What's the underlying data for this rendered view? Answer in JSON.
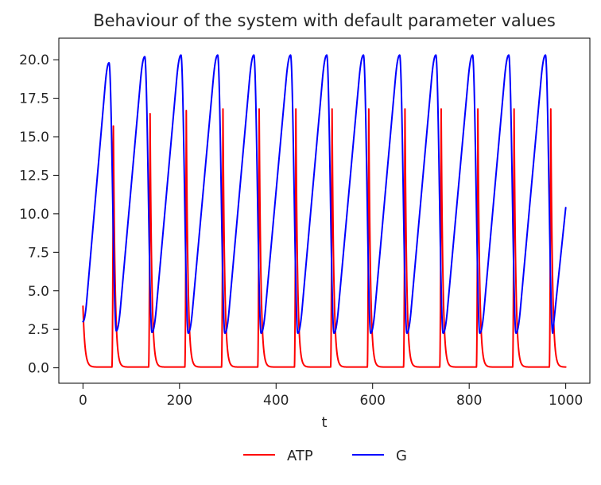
{
  "chart_data": {
    "type": "line",
    "title": "Behaviour of the system with default parameter values",
    "xlabel": "t",
    "ylabel": "",
    "xlim": [
      -50,
      1050
    ],
    "ylim": [
      -1.0,
      21.4
    ],
    "xticks": [
      0,
      200,
      400,
      600,
      800,
      1000
    ],
    "yticks": [
      0.0,
      2.5,
      5.0,
      7.5,
      10.0,
      12.5,
      15.0,
      17.5,
      20.0
    ],
    "xtick_labels": [
      "0",
      "200",
      "400",
      "600",
      "800",
      "1000"
    ],
    "ytick_labels": [
      "0.0",
      "2.5",
      "5.0",
      "7.5",
      "10.0",
      "12.5",
      "15.0",
      "17.5",
      "20.0"
    ],
    "grid": false,
    "legend_position": "bottom-center",
    "series": [
      {
        "name": "ATP",
        "color": "#ff0000",
        "oscillation": {
          "t_start": 0,
          "t_end": 1000,
          "initial_value": 4.0,
          "baseline": 0.05,
          "spike_times": [
            63,
            139,
            214,
            290,
            365,
            441,
            516,
            592,
            667,
            742,
            818,
            893,
            969
          ],
          "spike_peaks": [
            15.7,
            16.5,
            16.7,
            16.8,
            16.8,
            16.8,
            16.8,
            16.8,
            16.8,
            16.8,
            16.8,
            16.8,
            16.8
          ]
        }
      },
      {
        "name": "G",
        "color": "#0000ff",
        "oscillation": {
          "t_start": 0,
          "t_end": 1000,
          "initial_value": 3.0,
          "final_value": 10.4,
          "peak_times": [
            54,
            128,
            203,
            279,
            354,
            430,
            505,
            581,
            656,
            731,
            807,
            882,
            958
          ],
          "peak_values": [
            19.8,
            20.2,
            20.3,
            20.3,
            20.3,
            20.3,
            20.3,
            20.3,
            20.3,
            20.3,
            20.3,
            20.3,
            20.3
          ],
          "trough_times": [
            69,
            143,
            218,
            294,
            369,
            445,
            520,
            596,
            671,
            746,
            822,
            897,
            973
          ],
          "trough_values": [
            2.4,
            2.3,
            2.25,
            2.25,
            2.25,
            2.25,
            2.25,
            2.25,
            2.25,
            2.25,
            2.25,
            2.25,
            2.25
          ]
        }
      }
    ]
  }
}
